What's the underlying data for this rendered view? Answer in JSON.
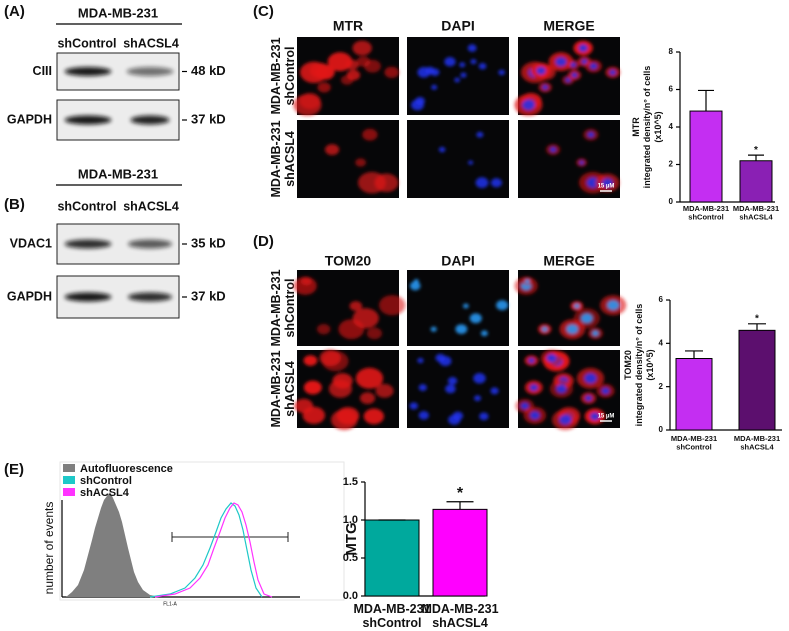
{
  "panel_labels": [
    "(A)",
    "(B)",
    "(C)",
    "(D)",
    "(E)"
  ],
  "blots": [
    {
      "cell_line": "MDA-MB-231",
      "lanes": [
        "shControl",
        "shACSL4"
      ],
      "rows": [
        {
          "protein": "CIII",
          "size": "48 kD"
        },
        {
          "protein": "GAPDH",
          "size": "37 kD"
        }
      ]
    },
    {
      "cell_line": "MDA-MB-231",
      "lanes": [
        "shControl",
        "shACSL4"
      ],
      "rows": [
        {
          "protein": "VDAC1",
          "size": "35 kD"
        },
        {
          "protein": "GAPDH",
          "size": "37 kD"
        }
      ]
    }
  ],
  "imaging": [
    {
      "columns": [
        "MTR",
        "DAPI",
        "MERGE"
      ],
      "rows": [
        [
          "MDA-MB-231",
          "shControl"
        ],
        [
          "MDA-MB-231",
          "shACSL4"
        ]
      ],
      "scale_bar": "15 µM"
    },
    {
      "columns": [
        "TOM20",
        "DAPI",
        "MERGE"
      ],
      "rows": [
        [
          "MDA-MB-231",
          "shControl"
        ],
        [
          "MDA-MB-231",
          "shACSL4"
        ]
      ],
      "scale_bar": "15 µM"
    }
  ],
  "histogram": {
    "legend": [
      {
        "name": "Autofluorescence",
        "color": "#7f7f7f"
      },
      {
        "name": "shControl",
        "color": "#1ec8c8"
      },
      {
        "name": "shACSL4",
        "color": "#ff33ff"
      }
    ],
    "y_label": "number of events",
    "x_label": "FL1-A"
  },
  "chart_data": [
    {
      "type": "bar",
      "y_label": [
        "MTR",
        "integrated density/n° of cells",
        "(x10^5)"
      ],
      "categories": [
        [
          "MDA-MB-231",
          "shControl"
        ],
        [
          "MDA-MB-231",
          "shACSL4"
        ]
      ],
      "values": [
        4.85,
        2.2
      ],
      "errors": [
        1.1,
        0.3
      ],
      "colors": [
        "#c42ef2",
        "#8a20b4"
      ],
      "annotations": [
        null,
        "*"
      ],
      "ylim": [
        0,
        8
      ],
      "yticks": [
        0,
        2,
        4,
        6,
        8
      ]
    },
    {
      "type": "bar",
      "y_label": [
        "TOM20",
        "integrated density/n° of cells",
        "(x10^5)"
      ],
      "categories": [
        [
          "MDA-MB-231",
          "shControl"
        ],
        [
          "MDA-MB-231",
          "shACSL4"
        ]
      ],
      "values": [
        3.3,
        4.6
      ],
      "errors": [
        0.35,
        0.3
      ],
      "colors": [
        "#c42ef2",
        "#5c0f6e"
      ],
      "annotations": [
        null,
        "*"
      ],
      "ylim": [
        0,
        6
      ],
      "yticks": [
        0,
        2,
        4,
        6
      ]
    },
    {
      "type": "bar",
      "y_label": [
        "MTG"
      ],
      "categories": [
        [
          "MDA-MB-231",
          "shControl"
        ],
        [
          "MDA-MB-231",
          "shACSL4"
        ]
      ],
      "values": [
        1.0,
        1.14
      ],
      "errors": [
        0,
        0.1
      ],
      "colors": [
        "#00a99d",
        "#ff00ff"
      ],
      "annotations": [
        null,
        "*"
      ],
      "ylim": [
        0,
        1.5
      ],
      "yticks": [
        {
          "value": 0,
          "label": "0.0"
        },
        0.5,
        {
          "value": 1,
          "label": "1.0"
        },
        1.5
      ]
    }
  ]
}
